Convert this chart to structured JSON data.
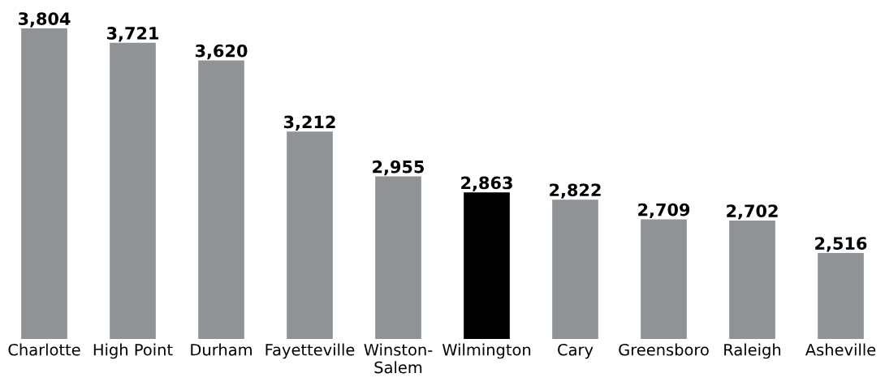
{
  "chart_data": {
    "type": "bar",
    "categories": [
      "Charlotte",
      "High Point",
      "Durham",
      "Fayetteville",
      "Winston-\nSalem",
      "Wilmington",
      "Cary",
      "Greensboro",
      "Raleigh",
      "Asheville"
    ],
    "values": [
      3804,
      3721,
      3620,
      3212,
      2955,
      2863,
      2822,
      2709,
      2702,
      2516
    ],
    "colors": [
      "#8f9396",
      "#8f9396",
      "#8f9396",
      "#8f9396",
      "#8f9396",
      "#000000",
      "#8f9396",
      "#8f9396",
      "#8f9396",
      "#8f9396"
    ],
    "value_labels": [
      "3,804",
      "3,721",
      "3,620",
      "3,212",
      "2,955",
      "2,863",
      "2,822",
      "2,709",
      "2,702",
      "2,516"
    ],
    "ylim": [
      2023,
      3804
    ],
    "grid": false,
    "legend": false
  }
}
